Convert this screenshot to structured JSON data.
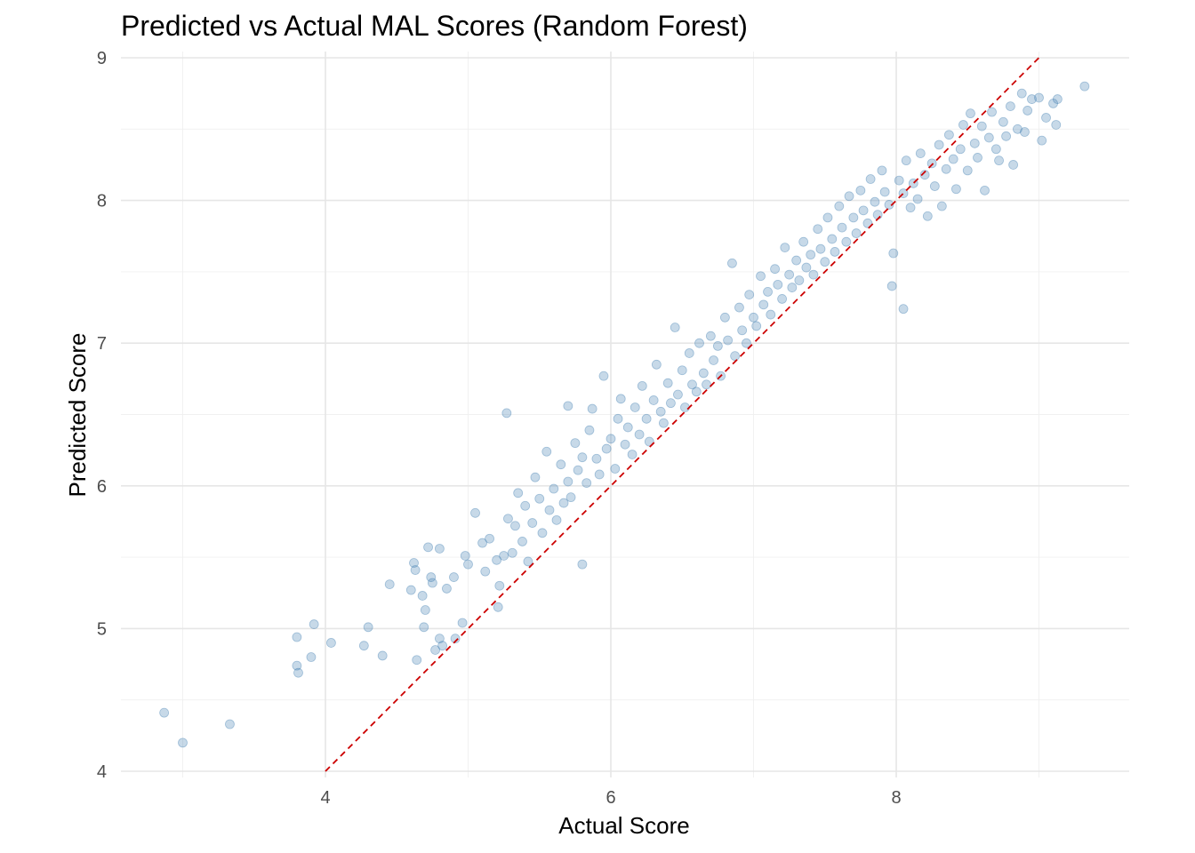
{
  "chart_data": {
    "type": "scatter",
    "title": "Predicted vs Actual MAL Scores (Random Forest)",
    "xlabel": "Actual Score",
    "ylabel": "Predicted Score",
    "xlim": [
      2.6,
      9.6
    ],
    "ylim": [
      4.0,
      9.0
    ],
    "x_ticks": [
      4,
      6,
      8
    ],
    "y_ticks": [
      4,
      5,
      6,
      7,
      8,
      9
    ],
    "x_tick_labels": [
      "4",
      "6",
      "8"
    ],
    "y_tick_labels": [
      "4",
      "5",
      "6",
      "7",
      "8",
      "9"
    ],
    "grid": true,
    "legend": "none",
    "point_color": "#4682b4",
    "point_opacity": 0.3,
    "reference_line": {
      "type": "identity",
      "color": "#cc0000",
      "style": "dashed",
      "x_range": [
        4.0,
        9.02
      ]
    },
    "series": [
      {
        "values": [
          [
            2.87,
            4.41
          ],
          [
            3.0,
            4.2
          ],
          [
            3.33,
            4.33
          ],
          [
            3.8,
            4.94
          ],
          [
            3.8,
            4.74
          ],
          [
            3.81,
            4.69
          ],
          [
            3.9,
            4.8
          ],
          [
            3.92,
            5.03
          ],
          [
            4.04,
            4.9
          ],
          [
            4.27,
            4.88
          ],
          [
            4.3,
            5.01
          ],
          [
            4.4,
            4.81
          ],
          [
            4.45,
            5.31
          ],
          [
            4.62,
            5.46
          ],
          [
            4.63,
            5.41
          ],
          [
            4.6,
            5.27
          ],
          [
            4.64,
            4.78
          ],
          [
            4.68,
            5.23
          ],
          [
            4.69,
            5.01
          ],
          [
            4.7,
            5.13
          ],
          [
            4.72,
            5.57
          ],
          [
            4.74,
            5.36
          ],
          [
            4.75,
            5.32
          ],
          [
            4.77,
            4.85
          ],
          [
            4.8,
            4.93
          ],
          [
            4.82,
            4.88
          ],
          [
            4.8,
            5.56
          ],
          [
            4.85,
            5.28
          ],
          [
            4.9,
            5.36
          ],
          [
            4.91,
            4.93
          ],
          [
            4.96,
            5.04
          ],
          [
            4.98,
            5.51
          ],
          [
            5.0,
            5.45
          ],
          [
            5.05,
            5.81
          ],
          [
            5.1,
            5.6
          ],
          [
            5.12,
            5.4
          ],
          [
            5.15,
            5.63
          ],
          [
            5.2,
            5.48
          ],
          [
            5.22,
            5.3
          ],
          [
            5.27,
            6.51
          ],
          [
            5.21,
            5.15
          ],
          [
            5.25,
            5.51
          ],
          [
            5.28,
            5.77
          ],
          [
            5.31,
            5.53
          ],
          [
            5.33,
            5.72
          ],
          [
            5.35,
            5.95
          ],
          [
            5.38,
            5.61
          ],
          [
            5.4,
            5.86
          ],
          [
            5.42,
            5.47
          ],
          [
            5.45,
            5.74
          ],
          [
            5.47,
            6.06
          ],
          [
            5.5,
            5.91
          ],
          [
            5.52,
            5.67
          ],
          [
            5.55,
            6.24
          ],
          [
            5.57,
            5.83
          ],
          [
            5.6,
            5.98
          ],
          [
            5.62,
            5.76
          ],
          [
            5.65,
            6.15
          ],
          [
            5.67,
            5.88
          ],
          [
            5.7,
            6.56
          ],
          [
            5.7,
            6.03
          ],
          [
            5.72,
            5.92
          ],
          [
            5.75,
            6.3
          ],
          [
            5.77,
            6.11
          ],
          [
            5.8,
            5.45
          ],
          [
            5.8,
            6.2
          ],
          [
            5.83,
            6.02
          ],
          [
            5.85,
            6.39
          ],
          [
            5.87,
            6.54
          ],
          [
            5.9,
            6.19
          ],
          [
            5.92,
            6.08
          ],
          [
            5.95,
            6.77
          ],
          [
            5.97,
            6.26
          ],
          [
            6.0,
            6.33
          ],
          [
            6.03,
            6.12
          ],
          [
            6.05,
            6.47
          ],
          [
            6.07,
            6.61
          ],
          [
            6.1,
            6.29
          ],
          [
            6.12,
            6.41
          ],
          [
            6.15,
            6.22
          ],
          [
            6.17,
            6.55
          ],
          [
            6.2,
            6.36
          ],
          [
            6.22,
            6.7
          ],
          [
            6.25,
            6.47
          ],
          [
            6.27,
            6.31
          ],
          [
            6.3,
            6.6
          ],
          [
            6.32,
            6.85
          ],
          [
            6.35,
            6.52
          ],
          [
            6.37,
            6.44
          ],
          [
            6.4,
            6.72
          ],
          [
            6.42,
            6.58
          ],
          [
            6.45,
            7.11
          ],
          [
            6.47,
            6.64
          ],
          [
            6.5,
            6.81
          ],
          [
            6.52,
            6.55
          ],
          [
            6.55,
            6.93
          ],
          [
            6.57,
            6.71
          ],
          [
            6.6,
            6.66
          ],
          [
            6.62,
            7.0
          ],
          [
            6.65,
            6.79
          ],
          [
            6.67,
            6.71
          ],
          [
            6.7,
            7.05
          ],
          [
            6.72,
            6.88
          ],
          [
            6.75,
            6.98
          ],
          [
            6.77,
            6.77
          ],
          [
            6.8,
            7.18
          ],
          [
            6.82,
            7.02
          ],
          [
            6.85,
            7.56
          ],
          [
            6.87,
            6.91
          ],
          [
            6.9,
            7.25
          ],
          [
            6.92,
            7.09
          ],
          [
            6.95,
            7.0
          ],
          [
            6.97,
            7.34
          ],
          [
            7.0,
            7.18
          ],
          [
            7.02,
            7.12
          ],
          [
            7.05,
            7.47
          ],
          [
            7.07,
            7.27
          ],
          [
            7.1,
            7.36
          ],
          [
            7.12,
            7.2
          ],
          [
            7.15,
            7.52
          ],
          [
            7.17,
            7.41
          ],
          [
            7.2,
            7.31
          ],
          [
            7.22,
            7.67
          ],
          [
            7.25,
            7.48
          ],
          [
            7.27,
            7.39
          ],
          [
            7.3,
            7.58
          ],
          [
            7.32,
            7.44
          ],
          [
            7.35,
            7.71
          ],
          [
            7.37,
            7.53
          ],
          [
            7.4,
            7.62
          ],
          [
            7.42,
            7.48
          ],
          [
            7.45,
            7.8
          ],
          [
            7.47,
            7.66
          ],
          [
            7.5,
            7.57
          ],
          [
            7.52,
            7.88
          ],
          [
            7.55,
            7.73
          ],
          [
            7.57,
            7.64
          ],
          [
            7.6,
            7.96
          ],
          [
            7.62,
            7.81
          ],
          [
            7.65,
            7.71
          ],
          [
            7.67,
            8.03
          ],
          [
            7.7,
            7.88
          ],
          [
            7.72,
            7.77
          ],
          [
            7.75,
            8.07
          ],
          [
            7.77,
            7.93
          ],
          [
            7.8,
            7.84
          ],
          [
            7.82,
            8.15
          ],
          [
            7.85,
            7.99
          ],
          [
            7.87,
            7.9
          ],
          [
            7.9,
            8.21
          ],
          [
            7.92,
            8.06
          ],
          [
            7.95,
            7.97
          ],
          [
            7.97,
            7.4
          ],
          [
            7.98,
            7.63
          ],
          [
            8.05,
            7.24
          ],
          [
            8.02,
            8.14
          ],
          [
            8.05,
            8.05
          ],
          [
            8.07,
            8.28
          ],
          [
            8.1,
            7.95
          ],
          [
            8.12,
            8.12
          ],
          [
            8.15,
            8.01
          ],
          [
            8.17,
            8.33
          ],
          [
            8.2,
            8.18
          ],
          [
            8.22,
            7.89
          ],
          [
            8.25,
            8.26
          ],
          [
            8.27,
            8.1
          ],
          [
            8.3,
            8.39
          ],
          [
            8.32,
            7.96
          ],
          [
            8.35,
            8.22
          ],
          [
            8.37,
            8.46
          ],
          [
            8.4,
            8.29
          ],
          [
            8.42,
            8.08
          ],
          [
            8.45,
            8.36
          ],
          [
            8.47,
            8.53
          ],
          [
            8.5,
            8.21
          ],
          [
            8.52,
            8.61
          ],
          [
            8.55,
            8.4
          ],
          [
            8.57,
            8.3
          ],
          [
            8.6,
            8.52
          ],
          [
            8.62,
            8.07
          ],
          [
            8.65,
            8.44
          ],
          [
            8.67,
            8.62
          ],
          [
            8.7,
            8.36
          ],
          [
            8.72,
            8.28
          ],
          [
            8.75,
            8.55
          ],
          [
            8.77,
            8.45
          ],
          [
            8.8,
            8.66
          ],
          [
            8.82,
            8.25
          ],
          [
            8.85,
            8.5
          ],
          [
            8.88,
            8.75
          ],
          [
            8.9,
            8.48
          ],
          [
            8.92,
            8.63
          ],
          [
            8.95,
            8.71
          ],
          [
            9.0,
            8.72
          ],
          [
            9.02,
            8.42
          ],
          [
            9.05,
            8.58
          ],
          [
            9.1,
            8.68
          ],
          [
            9.12,
            8.53
          ],
          [
            9.13,
            8.71
          ],
          [
            9.32,
            8.8
          ]
        ]
      }
    ]
  }
}
